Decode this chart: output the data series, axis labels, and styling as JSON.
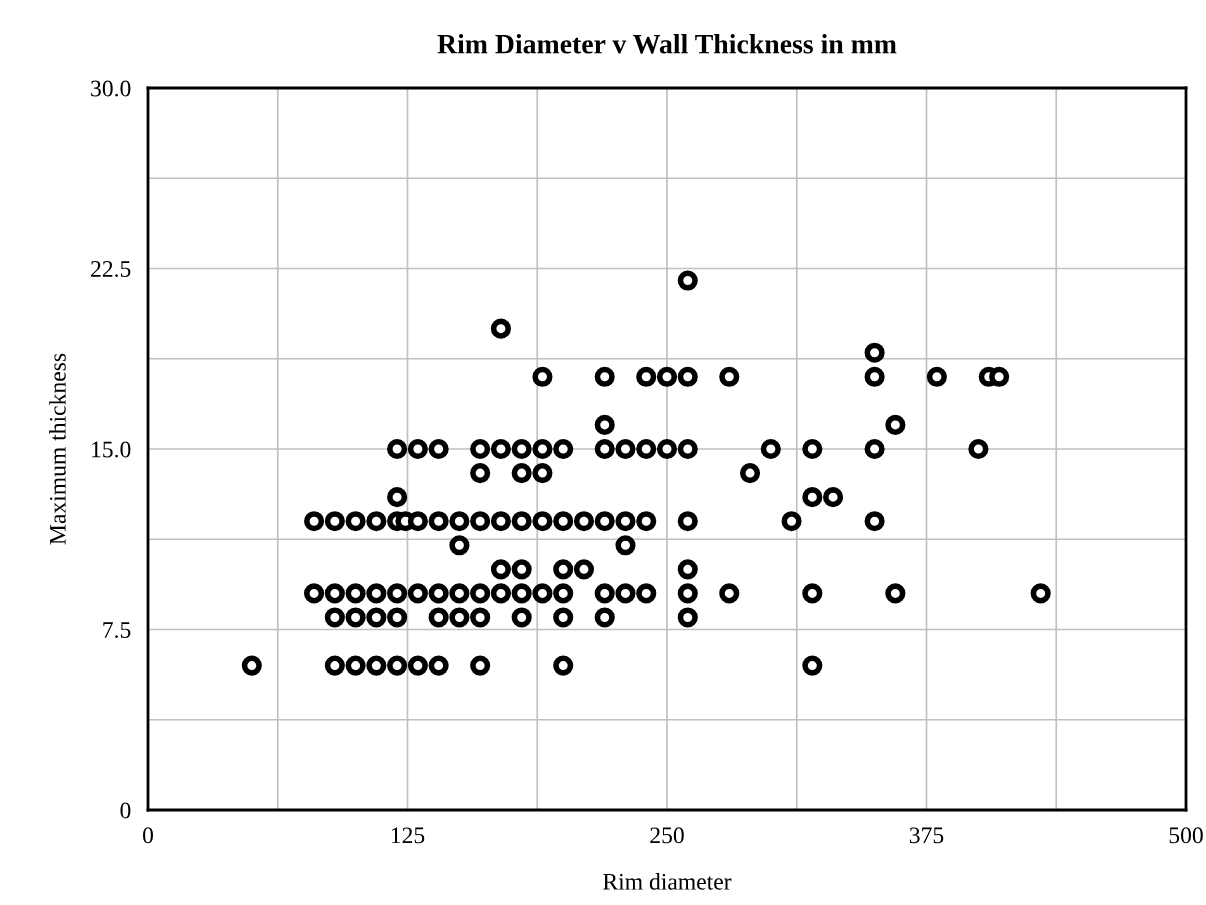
{
  "chart_data": {
    "type": "scatter",
    "title": "Rim Diameter v Wall Thickness in mm",
    "xlabel": "Rim diameter",
    "ylabel": "Maximum thickness",
    "series": [
      {
        "color": "#000000",
        "x": [
          50,
          90,
          100,
          110,
          120,
          130,
          140,
          160,
          200,
          320,
          90,
          100,
          110,
          120,
          140,
          150,
          160,
          180,
          200,
          220,
          260,
          80,
          90,
          100,
          110,
          120,
          130,
          140,
          150,
          160,
          170,
          180,
          190,
          200,
          220,
          230,
          240,
          260,
          280,
          320,
          360,
          430,
          170,
          180,
          200,
          210,
          260,
          150,
          230,
          80,
          90,
          100,
          110,
          120,
          124,
          130,
          140,
          150,
          160,
          170,
          180,
          190,
          200,
          210,
          220,
          230,
          240,
          260,
          310,
          350,
          120,
          320,
          330,
          160,
          180,
          190,
          290,
          120,
          130,
          140,
          160,
          170,
          180,
          190,
          200,
          220,
          230,
          240,
          250,
          260,
          300,
          320,
          350,
          400,
          220,
          360,
          190,
          220,
          240,
          250,
          260,
          280,
          350,
          380,
          405,
          410,
          350,
          170,
          260
        ],
        "values": [
          6,
          6,
          6,
          6,
          6,
          6,
          6,
          6,
          6,
          6,
          8,
          8,
          8,
          8,
          8,
          8,
          8,
          8,
          8,
          8,
          8,
          9,
          9,
          9,
          9,
          9,
          9,
          9,
          9,
          9,
          9,
          9,
          9,
          9,
          9,
          9,
          9,
          9,
          9,
          9,
          9,
          9,
          10,
          10,
          10,
          10,
          10,
          11,
          11,
          12,
          12,
          12,
          12,
          12,
          12,
          12,
          12,
          12,
          12,
          12,
          12,
          12,
          12,
          12,
          12,
          12,
          12,
          12,
          12,
          12,
          13,
          13,
          13,
          14,
          14,
          14,
          14,
          15,
          15,
          15,
          15,
          15,
          15,
          15,
          15,
          15,
          15,
          15,
          15,
          15,
          15,
          15,
          15,
          15,
          16,
          16,
          18,
          18,
          18,
          18,
          18,
          18,
          18,
          18,
          18,
          18,
          19,
          20,
          22
        ]
      }
    ],
    "xlim": [
      0,
      500
    ],
    "ylim": [
      0,
      30
    ],
    "xticks": [
      0,
      {
        "value": 62.5,
        "label": null
      },
      125,
      {
        "value": 187.5,
        "label": null
      },
      250,
      {
        "value": 312.5,
        "label": null
      },
      375,
      {
        "value": 437.5,
        "label": null
      },
      500
    ],
    "yticks": [
      {
        "value": 0,
        "label": "0"
      },
      {
        "value": 3.75,
        "label": null
      },
      7.5,
      {
        "value": 11.25,
        "label": null
      },
      {
        "value": 15,
        "label": "15.0"
      },
      {
        "value": 18.75,
        "label": null
      },
      22.5,
      {
        "value": 26.25,
        "label": null
      },
      {
        "value": 30,
        "label": "30.0"
      }
    ],
    "grid": true,
    "marker": "circle",
    "legend": false
  }
}
